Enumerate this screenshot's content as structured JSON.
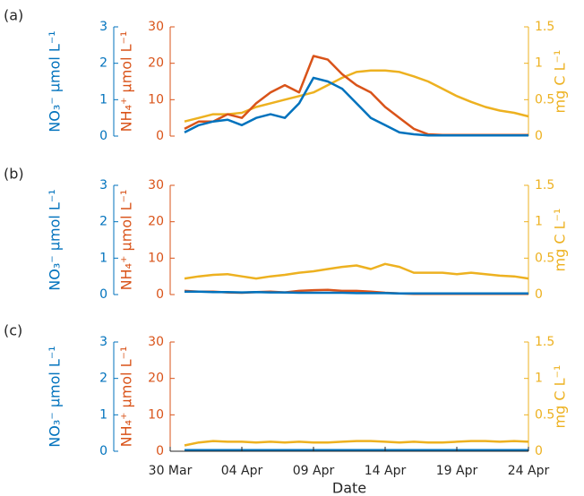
{
  "chart_data": [
    {
      "type": "line",
      "panel_label": "(a)",
      "ylabel": "NH₄⁺ µmol L⁻¹",
      "y2label": "mg C L⁻¹",
      "y3label": "NO₃⁻ µmol L⁻¹",
      "x": [
        1,
        2,
        3,
        4,
        5,
        6,
        7,
        8,
        9,
        10,
        11,
        12,
        13,
        14,
        15,
        16,
        17,
        18,
        19,
        20,
        21,
        22,
        23,
        24,
        25
      ],
      "xlim": [
        0,
        25
      ],
      "ylim": [
        0,
        30
      ],
      "yticks": [
        0,
        10,
        20,
        30
      ],
      "y2lim": [
        0,
        1.5
      ],
      "y2ticks": [
        0,
        0.5,
        1,
        1.5
      ],
      "y3lim": [
        0,
        3
      ],
      "y3ticks": [
        0,
        1,
        2,
        3
      ],
      "series": [
        {
          "color": "#EDB120",
          "axis": "y2",
          "values": [
            0.2,
            0.25,
            0.3,
            0.3,
            0.32,
            0.4,
            0.45,
            0.5,
            0.55,
            0.6,
            0.7,
            0.8,
            0.88,
            0.9,
            0.9,
            0.88,
            0.82,
            0.75,
            0.65,
            0.55,
            0.47,
            0.4,
            0.35,
            0.32,
            0.27
          ]
        },
        {
          "color": "#D95319",
          "axis": "y",
          "values": [
            2,
            4,
            4,
            6,
            5,
            9,
            12,
            14,
            12,
            22,
            21,
            17,
            14,
            12,
            8,
            5,
            2,
            0.5,
            0.3,
            0.3,
            0.3,
            0.3,
            0.3,
            0.3,
            0.3
          ]
        },
        {
          "color": "#0072BD",
          "axis": "y3",
          "values": [
            0.1,
            0.3,
            0.4,
            0.45,
            0.3,
            0.5,
            0.6,
            0.5,
            0.9,
            1.6,
            1.5,
            1.3,
            0.9,
            0.5,
            0.3,
            0.1,
            0.05,
            0.02,
            0.02,
            0.02,
            0.02,
            0.02,
            0.02,
            0.02,
            0.02
          ]
        }
      ]
    },
    {
      "type": "line",
      "panel_label": "(b)",
      "ylabel": "NH₄⁺ µmol L⁻¹",
      "y2label": "mg C L⁻¹",
      "y3label": "NO₃⁻ µmol L⁻¹",
      "x": [
        1,
        2,
        3,
        4,
        5,
        6,
        7,
        8,
        9,
        10,
        11,
        12,
        13,
        14,
        15,
        16,
        17,
        18,
        19,
        20,
        21,
        22,
        23,
        24,
        25
      ],
      "xlim": [
        0,
        25
      ],
      "ylim": [
        0,
        30
      ],
      "yticks": [
        0,
        10,
        20,
        30
      ],
      "y2lim": [
        0,
        1.5
      ],
      "y2ticks": [
        0,
        0.5,
        1,
        1.5
      ],
      "y3lim": [
        0,
        3
      ],
      "y3ticks": [
        0,
        1,
        2,
        3
      ],
      "series": [
        {
          "color": "#EDB120",
          "axis": "y2",
          "values": [
            0.22,
            0.25,
            0.27,
            0.28,
            0.25,
            0.22,
            0.25,
            0.27,
            0.3,
            0.32,
            0.35,
            0.38,
            0.4,
            0.35,
            0.42,
            0.38,
            0.3,
            0.3,
            0.3,
            0.28,
            0.3,
            0.28,
            0.26,
            0.25,
            0.22
          ]
        },
        {
          "color": "#D95319",
          "axis": "y",
          "values": [
            1,
            0.8,
            0.8,
            0.6,
            0.5,
            0.7,
            0.8,
            0.6,
            1,
            1.2,
            1.3,
            1,
            1,
            0.8,
            0.5,
            0.3,
            0.2,
            0.2,
            0.2,
            0.2,
            0.2,
            0.2,
            0.2,
            0.2,
            0.2
          ]
        },
        {
          "color": "#0072BD",
          "axis": "y3",
          "values": [
            0.08,
            0.08,
            0.07,
            0.07,
            0.06,
            0.07,
            0.06,
            0.06,
            0.05,
            0.05,
            0.05,
            0.05,
            0.04,
            0.04,
            0.04,
            0.03,
            0.03,
            0.03,
            0.03,
            0.03,
            0.03,
            0.03,
            0.03,
            0.03,
            0.03
          ]
        }
      ]
    },
    {
      "type": "line",
      "panel_label": "(c)",
      "ylabel": "NH₄⁺ µmol L⁻¹",
      "y2label": "mg C L⁻¹",
      "y3label": "NO₃⁻ µmol L⁻¹",
      "xlabel": "Date",
      "x": [
        1,
        2,
        3,
        4,
        5,
        6,
        7,
        8,
        9,
        10,
        11,
        12,
        13,
        14,
        15,
        16,
        17,
        18,
        19,
        20,
        21,
        22,
        23,
        24,
        25
      ],
      "xlim": [
        0,
        25
      ],
      "xticks": [
        {
          "value": 0,
          "label": "30 Mar"
        },
        {
          "value": 5,
          "label": "04 Apr"
        },
        {
          "value": 10,
          "label": "09 Apr"
        },
        {
          "value": 15,
          "label": "14 Apr"
        },
        {
          "value": 20,
          "label": "19 Apr"
        },
        {
          "value": 25,
          "label": "24 Apr"
        }
      ],
      "ylim": [
        0,
        30
      ],
      "yticks": [
        0,
        10,
        20,
        30
      ],
      "y2lim": [
        0,
        1.5
      ],
      "y2ticks": [
        0,
        0.5,
        1,
        1.5
      ],
      "y3lim": [
        0,
        3
      ],
      "y3ticks": [
        0,
        1,
        2,
        3
      ],
      "series": [
        {
          "color": "#EDB120",
          "axis": "y2",
          "values": [
            0.08,
            0.12,
            0.14,
            0.13,
            0.13,
            0.12,
            0.13,
            0.12,
            0.13,
            0.12,
            0.12,
            0.13,
            0.14,
            0.14,
            0.13,
            0.12,
            0.13,
            0.12,
            0.12,
            0.13,
            0.14,
            0.14,
            0.13,
            0.14,
            0.13
          ]
        },
        {
          "color": "#D95319",
          "axis": "y",
          "values": [
            0.3,
            0.3,
            0.3,
            0.3,
            0.3,
            0.3,
            0.3,
            0.3,
            0.3,
            0.3,
            0.3,
            0.3,
            0.3,
            0.3,
            0.3,
            0.3,
            0.3,
            0.3,
            0.3,
            0.3,
            0.3,
            0.3,
            0.3,
            0.3,
            0.3
          ]
        },
        {
          "color": "#0072BD",
          "axis": "y3",
          "values": [
            0.03,
            0.03,
            0.03,
            0.03,
            0.03,
            0.03,
            0.03,
            0.03,
            0.03,
            0.03,
            0.03,
            0.03,
            0.03,
            0.03,
            0.03,
            0.03,
            0.03,
            0.03,
            0.03,
            0.03,
            0.03,
            0.03,
            0.03,
            0.03,
            0.03
          ]
        }
      ]
    }
  ]
}
